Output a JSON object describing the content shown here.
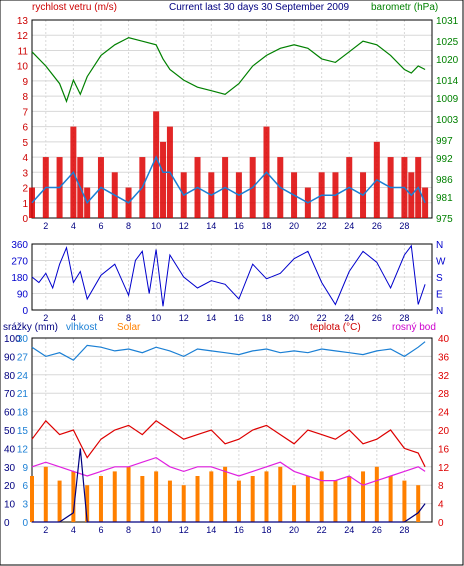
{
  "header": {
    "title": "Current last 30 days 30 September 2009",
    "wind_label": "rychlost vetru (m/s)",
    "baro_label": "barometr (hPa)"
  },
  "bottom_header": {
    "rain_label": "srážky (mm)",
    "humidity_label": "vlhkost",
    "solar_label": "Solar",
    "temp_label": "teplota (°C)",
    "dew_label": "rosný bod"
  },
  "colors": {
    "wind_axis": "#cc0000",
    "baro_axis": "#008000",
    "dir_axis": "#0000cc",
    "rain_axis": "#000080",
    "humidity": "#1a7fd4",
    "solar": "#ff8000",
    "temp": "#dd0000",
    "dew": "#e020e0",
    "grid": "#d8d8d8"
  },
  "chart_data": [
    {
      "type": "line",
      "title": "Current last 30 days 30 September 2009",
      "x_ticks": [
        "2",
        "4",
        "6",
        "8",
        "10",
        "12",
        "14",
        "16",
        "18",
        "20",
        "22",
        "24",
        "26",
        "28"
      ],
      "xlim": [
        1,
        30
      ],
      "y_left": {
        "label": "rychlost vetru (m/s)",
        "ticks": [
          "0",
          "1",
          "2",
          "3",
          "4",
          "5",
          "6",
          "7",
          "8",
          "9",
          "10",
          "11",
          "12",
          "13"
        ],
        "ylim": [
          0,
          13
        ]
      },
      "y_right": {
        "label": "barometr (hPa)",
        "ticks": [
          "975",
          "981",
          "986",
          "992",
          "997",
          "1003",
          "1009",
          "1014",
          "1020",
          "1025",
          "1031"
        ],
        "ylim": [
          975,
          1031
        ]
      },
      "series": [
        {
          "name": "barometr (hPa)",
          "color": "#008000",
          "x": [
            1,
            2,
            3,
            3.5,
            4,
            4.5,
            5,
            6,
            7,
            8,
            9,
            10,
            10.5,
            11,
            12,
            13,
            14,
            15,
            16,
            17,
            18,
            19,
            20,
            21,
            22,
            23,
            24,
            25,
            26,
            27,
            28,
            28.5,
            29,
            29.5
          ],
          "values": [
            1022,
            1018,
            1013,
            1008,
            1014,
            1010,
            1015,
            1021,
            1024,
            1026,
            1025,
            1024,
            1020,
            1017,
            1014,
            1012,
            1011,
            1010,
            1013,
            1018,
            1021,
            1023,
            1024,
            1023,
            1020,
            1019,
            1022,
            1025,
            1024,
            1021,
            1017,
            1016,
            1018,
            1017
          ]
        },
        {
          "name": "rychlost vetru (m/s) - gust",
          "color": "#dd0000",
          "x": [
            1,
            2,
            3,
            4,
            4.5,
            5,
            6,
            7,
            8,
            9,
            10,
            10.5,
            11,
            12,
            13,
            14,
            15,
            16,
            17,
            18,
            19,
            20,
            21,
            22,
            23,
            24,
            25,
            26,
            27,
            28,
            28.5,
            29,
            29.5
          ],
          "values": [
            2,
            4,
            4,
            6,
            4,
            2,
            4,
            3,
            2,
            4,
            7,
            5,
            6,
            3,
            4,
            3,
            4,
            3,
            4,
            6,
            4,
            3,
            2,
            3,
            3,
            4,
            3,
            5,
            4,
            4,
            3,
            4,
            2
          ]
        },
        {
          "name": "rychlost vetru (m/s) - average",
          "color": "#1a7fd4",
          "x": [
            1,
            2,
            3,
            4,
            4.5,
            5,
            6,
            7,
            8,
            9,
            10,
            10.5,
            11,
            12,
            13,
            14,
            15,
            16,
            17,
            18,
            19,
            20,
            21,
            22,
            23,
            24,
            25,
            26,
            27,
            28,
            28.5,
            29,
            29.5
          ],
          "values": [
            1,
            2,
            2,
            3,
            2,
            1,
            2,
            1.5,
            1,
            2,
            4,
            3,
            3,
            1.5,
            2,
            1.5,
            2,
            1.5,
            2,
            3,
            2,
            1.5,
            1,
            1.5,
            1.5,
            2,
            1.5,
            2.5,
            2,
            2,
            1.5,
            2,
            1
          ]
        }
      ]
    },
    {
      "type": "line",
      "x_ticks": [
        "2",
        "4",
        "6",
        "8",
        "10",
        "12",
        "14",
        "16",
        "18",
        "20",
        "22",
        "24",
        "26",
        "28"
      ],
      "xlim": [
        1,
        30
      ],
      "y_left": {
        "ticks": [
          "0",
          "90",
          "180",
          "270",
          "360"
        ],
        "ylim": [
          0,
          360
        ]
      },
      "y_right": {
        "ticks": [
          "N",
          "E",
          "S",
          "W",
          "N"
        ]
      },
      "series": [
        {
          "name": "wind direction",
          "color": "#0000cc",
          "x": [
            1,
            1.5,
            2,
            2.5,
            3,
            3.5,
            4,
            4.5,
            5,
            6,
            7,
            8,
            8.5,
            9,
            9.5,
            10,
            10.5,
            11,
            12,
            13,
            14,
            15,
            16,
            17,
            18,
            19,
            20,
            21,
            22,
            23,
            24,
            25,
            26,
            27,
            28,
            28.5,
            29,
            29.5
          ],
          "values": [
            180,
            150,
            200,
            120,
            250,
            340,
            150,
            210,
            60,
            190,
            250,
            80,
            270,
            320,
            90,
            330,
            20,
            300,
            180,
            120,
            160,
            140,
            60,
            250,
            170,
            200,
            280,
            320,
            150,
            30,
            210,
            320,
            260,
            120,
            300,
            350,
            30,
            140
          ]
        }
      ]
    },
    {
      "type": "line",
      "x_ticks": [
        "2",
        "4",
        "6",
        "8",
        "10",
        "12",
        "14",
        "16",
        "18",
        "20",
        "22",
        "24",
        "26",
        "28"
      ],
      "xlim": [
        1,
        30
      ],
      "y_rain": {
        "label": "srážky (mm)",
        "ticks": [
          "0",
          "10",
          "20",
          "30",
          "40",
          "50",
          "60",
          "70",
          "80",
          "90",
          "100"
        ],
        "ylim": [
          0,
          100
        ]
      },
      "y_humidity": {
        "label": "vlhkost",
        "ticks": [
          "0",
          "3",
          "6",
          "9",
          "12",
          "15",
          "18",
          "21",
          "24",
          "27",
          "30"
        ],
        "ylim": [
          0,
          30
        ]
      },
      "y_temp": {
        "label": "teplota (°C)",
        "ticks": [
          "0",
          "4",
          "8",
          "12",
          "16",
          "20",
          "24",
          "28",
          "32",
          "36",
          "40"
        ],
        "ylim": [
          0,
          40
        ]
      },
      "series": [
        {
          "name": "vlhkost",
          "color": "#1a7fd4",
          "x": [
            1,
            2,
            3,
            4,
            5,
            6,
            7,
            8,
            9,
            10,
            11,
            12,
            13,
            14,
            15,
            16,
            17,
            18,
            19,
            20,
            21,
            22,
            23,
            24,
            25,
            26,
            27,
            28,
            29,
            29.5
          ],
          "values": [
            95,
            90,
            92,
            88,
            96,
            95,
            93,
            94,
            92,
            95,
            93,
            90,
            94,
            93,
            92,
            91,
            93,
            94,
            92,
            93,
            92,
            94,
            93,
            92,
            91,
            93,
            94,
            90,
            95,
            98
          ]
        },
        {
          "name": "teplota (°C) max",
          "color": "#dd0000",
          "x": [
            1,
            2,
            3,
            4,
            5,
            6,
            7,
            8,
            9,
            10,
            11,
            12,
            13,
            14,
            15,
            16,
            17,
            18,
            19,
            20,
            21,
            22,
            23,
            24,
            25,
            26,
            27,
            28,
            29,
            29.5
          ],
          "values": [
            18,
            22,
            19,
            20,
            14,
            18,
            20,
            21,
            19,
            22,
            20,
            18,
            19,
            20,
            17,
            18,
            20,
            21,
            19,
            17,
            20,
            19,
            18,
            20,
            17,
            18,
            20,
            16,
            15,
            12
          ]
        },
        {
          "name": "rosný bod",
          "color": "#e020e0",
          "x": [
            1,
            2,
            3,
            4,
            5,
            6,
            7,
            8,
            9,
            10,
            11,
            12,
            13,
            14,
            15,
            16,
            17,
            18,
            19,
            20,
            21,
            22,
            23,
            24,
            25,
            26,
            27,
            28,
            29,
            29.5
          ],
          "values": [
            12,
            13,
            12,
            11,
            10,
            11,
            12,
            12,
            13,
            14,
            12,
            11,
            12,
            12,
            11,
            10,
            11,
            12,
            13,
            11,
            10,
            9,
            9,
            10,
            8,
            9,
            10,
            11,
            12,
            11
          ]
        },
        {
          "name": "Solar",
          "color": "#ff8000",
          "x": [
            1,
            2,
            3,
            4,
            5,
            6,
            7,
            8,
            9,
            10,
            11,
            12,
            13,
            14,
            15,
            16,
            17,
            18,
            19,
            20,
            21,
            22,
            23,
            24,
            25,
            26,
            27,
            28,
            29
          ],
          "values": [
            10,
            12,
            9,
            11,
            8,
            10,
            11,
            12,
            10,
            11,
            9,
            8,
            10,
            11,
            12,
            9,
            10,
            11,
            12,
            8,
            10,
            11,
            9,
            10,
            11,
            12,
            10,
            9,
            8
          ]
        },
        {
          "name": "srážky (mm)",
          "color": "#000080",
          "x": [
            1,
            2,
            3,
            4,
            4.5,
            5,
            6,
            7,
            8,
            9,
            10,
            11,
            12,
            13,
            14,
            15,
            16,
            17,
            18,
            19,
            20,
            21,
            22,
            23,
            24,
            25,
            26,
            27,
            28,
            29,
            29.5
          ],
          "values": [
            0,
            0,
            0,
            5,
            40,
            0,
            0,
            0,
            0,
            0,
            0,
            0,
            0,
            0,
            0,
            0,
            0,
            0,
            0,
            0,
            0,
            0,
            0,
            0,
            0,
            0,
            0,
            0,
            0,
            5,
            10
          ]
        }
      ]
    }
  ]
}
